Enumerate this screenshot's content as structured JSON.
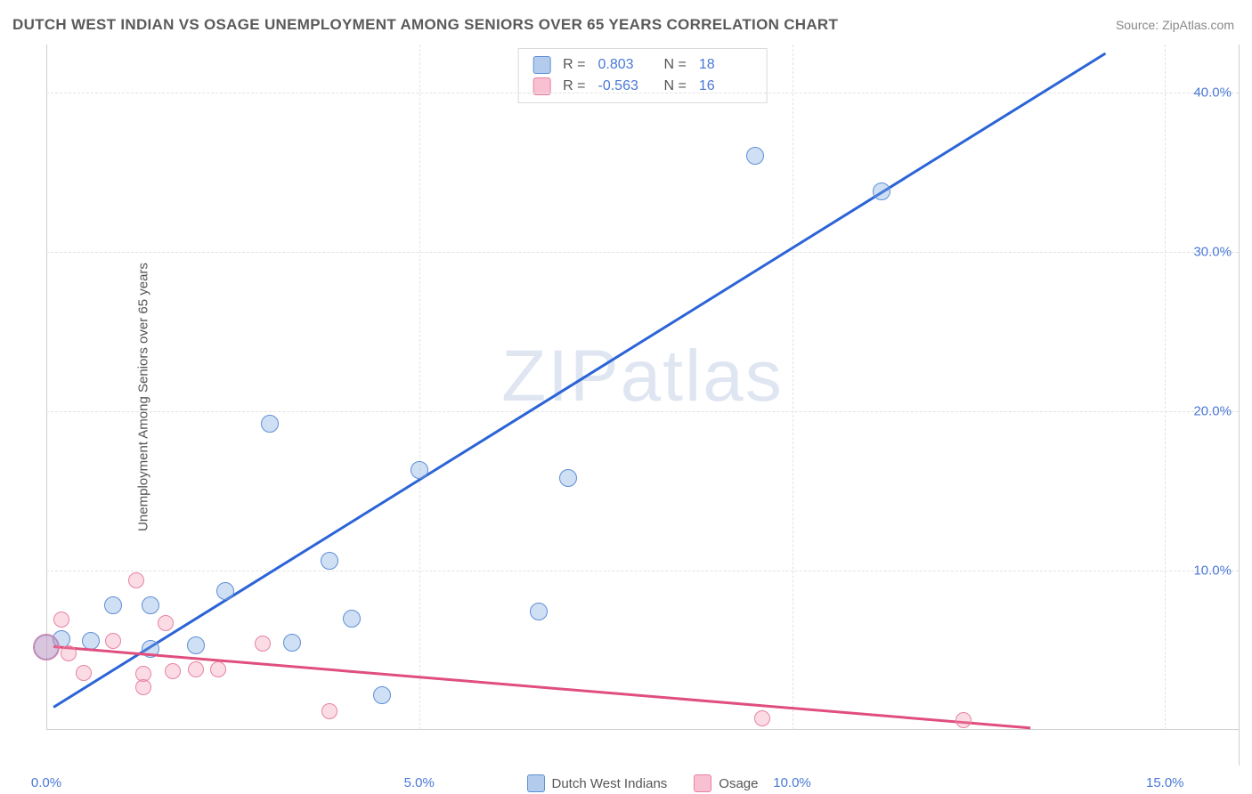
{
  "title": "DUTCH WEST INDIAN VS OSAGE UNEMPLOYMENT AMONG SENIORS OVER 65 YEARS CORRELATION CHART",
  "source": "Source: ZipAtlas.com",
  "watermark": "ZIPatlas",
  "y_axis_label": "Unemployment Among Seniors over 65 years",
  "chart": {
    "type": "scatter",
    "background_color": "#ffffff",
    "grid_color": "#e2e2e2",
    "axis_color": "#cfcfcf",
    "tick_color": "#4a78d6",
    "xlim": [
      0,
      16
    ],
    "ylim": [
      0,
      43
    ],
    "x_ticks": [
      0,
      5,
      10,
      15
    ],
    "x_tick_labels": [
      "0.0%",
      "5.0%",
      "10.0%",
      "15.0%"
    ],
    "y_ticks": [
      10,
      20,
      30,
      40
    ],
    "y_tick_labels": [
      "10.0%",
      "20.0%",
      "30.0%",
      "40.0%"
    ],
    "y_grid": [
      10,
      20,
      30,
      40
    ],
    "x_grid": [
      5,
      10,
      15
    ],
    "point_radius": 10,
    "point_border_width": 1.5,
    "series": [
      {
        "name": "Dutch West Indians",
        "fill": "rgba(117,162,224,0.35)",
        "stroke": "#5f8fd6",
        "R": "0.803",
        "N": "18",
        "trend": {
          "x1": 0.1,
          "y1": 1.5,
          "x2": 14.2,
          "y2": 42.5,
          "color": "#2b64d6",
          "width": 2.5
        },
        "points": [
          {
            "x": 0.0,
            "y": 5.2,
            "r": 14
          },
          {
            "x": 0.2,
            "y": 5.7,
            "r": 10
          },
          {
            "x": 0.6,
            "y": 5.6,
            "r": 10
          },
          {
            "x": 0.9,
            "y": 7.8,
            "r": 10
          },
          {
            "x": 1.4,
            "y": 7.8,
            "r": 10
          },
          {
            "x": 1.4,
            "y": 5.1,
            "r": 10
          },
          {
            "x": 2.0,
            "y": 5.3,
            "r": 10
          },
          {
            "x": 2.4,
            "y": 8.7,
            "r": 10
          },
          {
            "x": 3.0,
            "y": 19.2,
            "r": 10
          },
          {
            "x": 3.3,
            "y": 5.5,
            "r": 10
          },
          {
            "x": 3.8,
            "y": 10.6,
            "r": 10
          },
          {
            "x": 4.1,
            "y": 7.0,
            "r": 10
          },
          {
            "x": 4.5,
            "y": 2.2,
            "r": 10
          },
          {
            "x": 5.0,
            "y": 16.3,
            "r": 10
          },
          {
            "x": 6.6,
            "y": 7.4,
            "r": 10
          },
          {
            "x": 7.0,
            "y": 15.8,
            "r": 10
          },
          {
            "x": 9.5,
            "y": 36.0,
            "r": 10
          },
          {
            "x": 11.2,
            "y": 33.8,
            "r": 10
          }
        ]
      },
      {
        "name": "Osage",
        "fill": "rgba(242,140,170,0.30)",
        "stroke": "#e782a3",
        "R": "-0.563",
        "N": "16",
        "trend": {
          "x1": 0.1,
          "y1": 5.3,
          "x2": 13.2,
          "y2": 0.2,
          "color": "#e04e7d",
          "width": 2.5
        },
        "points": [
          {
            "x": 0.0,
            "y": 5.2,
            "r": 15
          },
          {
            "x": 0.2,
            "y": 6.9,
            "r": 9
          },
          {
            "x": 0.3,
            "y": 4.8,
            "r": 9
          },
          {
            "x": 0.5,
            "y": 3.6,
            "r": 9
          },
          {
            "x": 0.9,
            "y": 5.6,
            "r": 9
          },
          {
            "x": 1.2,
            "y": 9.4,
            "r": 9
          },
          {
            "x": 1.3,
            "y": 3.5,
            "r": 9
          },
          {
            "x": 1.6,
            "y": 6.7,
            "r": 9
          },
          {
            "x": 1.7,
            "y": 3.7,
            "r": 9
          },
          {
            "x": 2.0,
            "y": 3.8,
            "r": 9
          },
          {
            "x": 1.3,
            "y": 2.7,
            "r": 9
          },
          {
            "x": 2.3,
            "y": 3.8,
            "r": 9
          },
          {
            "x": 2.9,
            "y": 5.4,
            "r": 9
          },
          {
            "x": 3.8,
            "y": 1.2,
            "r": 9
          },
          {
            "x": 9.6,
            "y": 0.7,
            "r": 9
          },
          {
            "x": 12.3,
            "y": 0.6,
            "r": 9
          }
        ]
      }
    ]
  },
  "legend_top": {
    "rows": [
      {
        "swatch_fill": "rgba(117,162,224,0.55)",
        "swatch_stroke": "#5f8fd6",
        "r_label": "R =",
        "r_val": "0.803",
        "n_label": "N =",
        "n_val": "18"
      },
      {
        "swatch_fill": "rgba(242,140,170,0.55)",
        "swatch_stroke": "#e782a3",
        "r_label": "R =",
        "r_val": "-0.563",
        "n_label": "N =",
        "n_val": "16"
      }
    ]
  },
  "legend_bottom": {
    "items": [
      {
        "swatch_fill": "rgba(117,162,224,0.55)",
        "swatch_stroke": "#5f8fd6",
        "label": "Dutch West Indians"
      },
      {
        "swatch_fill": "rgba(242,140,170,0.55)",
        "swatch_stroke": "#e782a3",
        "label": "Osage"
      }
    ]
  }
}
